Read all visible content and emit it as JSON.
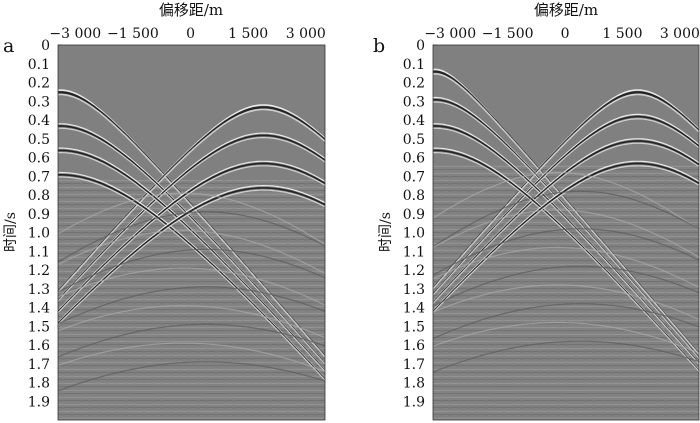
{
  "chart_data": [
    {
      "type": "heatmap",
      "panel": "a",
      "xlabel": "偏移距/m",
      "ylabel": "时间/s",
      "x_ticks": [
        "−3 000",
        "−1 500",
        "0",
        "1 500",
        "3 000"
      ],
      "x_tick_values": [
        -3000,
        -1500,
        0,
        1500,
        3000
      ],
      "xlim": [
        -3450,
        3500
      ],
      "y_ticks": [
        "0",
        "0.1",
        "0.2",
        "0.3",
        "0.4",
        "0.5",
        "0.6",
        "0.7",
        "0.8",
        "0.9",
        "1.0",
        "1.1",
        "1.2",
        "1.3",
        "1.4",
        "1.5",
        "1.6",
        "1.7",
        "1.8",
        "1.9"
      ],
      "y_tick_values": [
        0,
        0.1,
        0.2,
        0.3,
        0.4,
        0.5,
        0.6,
        0.7,
        0.8,
        0.9,
        1.0,
        1.1,
        1.2,
        1.3,
        1.4,
        1.5,
        1.6,
        1.7,
        1.8,
        1.9
      ],
      "ylim": [
        0,
        2.0
      ],
      "y_inverted": true,
      "colormap": "grayscale seismic",
      "events": [
        {
          "kind": "diffraction",
          "apex_offset": -3400,
          "apex_time": 0.24
        },
        {
          "kind": "diffraction",
          "apex_offset": 1900,
          "apex_time": 0.32
        },
        {
          "kind": "diffraction",
          "apex_offset": -3400,
          "apex_time": 0.42
        },
        {
          "kind": "diffraction",
          "apex_offset": 1900,
          "apex_time": 0.47
        },
        {
          "kind": "diffraction",
          "apex_offset": -3400,
          "apex_time": 0.55
        },
        {
          "kind": "diffraction",
          "apex_offset": 1900,
          "apex_time": 0.62
        },
        {
          "kind": "diffraction",
          "apex_offset": -3400,
          "apex_time": 0.68
        },
        {
          "kind": "diffraction",
          "apex_offset": 1900,
          "apex_time": 0.75
        }
      ]
    },
    {
      "type": "heatmap",
      "panel": "b",
      "xlabel": "偏移距/m",
      "ylabel": "时间/s",
      "x_ticks": [
        "−3 000",
        "−1 500",
        "0",
        "1 500",
        "3 000"
      ],
      "x_tick_values": [
        -3000,
        -1500,
        0,
        1500,
        3000
      ],
      "xlim": [
        -3450,
        3500
      ],
      "y_ticks": [
        "0",
        "0.1",
        "0.2",
        "0.3",
        "0.4",
        "0.5",
        "0.6",
        "0.7",
        "0.8",
        "0.9",
        "1.0",
        "1.1",
        "1.2",
        "1.3",
        "1.4",
        "1.5",
        "1.6",
        "1.7",
        "1.8",
        "1.9"
      ],
      "y_tick_values": [
        0,
        0.1,
        0.2,
        0.3,
        0.4,
        0.5,
        0.6,
        0.7,
        0.8,
        0.9,
        1.0,
        1.1,
        1.2,
        1.3,
        1.4,
        1.5,
        1.6,
        1.7,
        1.8,
        1.9
      ],
      "ylim": [
        0,
        2.0
      ],
      "y_inverted": true,
      "colormap": "grayscale seismic",
      "events": [
        {
          "kind": "diffraction",
          "apex_offset": -3400,
          "apex_time": 0.13
        },
        {
          "kind": "diffraction",
          "apex_offset": 1900,
          "apex_time": 0.24
        },
        {
          "kind": "diffraction",
          "apex_offset": -3400,
          "apex_time": 0.28
        },
        {
          "kind": "diffraction",
          "apex_offset": 1900,
          "apex_time": 0.37
        },
        {
          "kind": "diffraction",
          "apex_offset": -3400,
          "apex_time": 0.42
        },
        {
          "kind": "diffraction",
          "apex_offset": 1900,
          "apex_time": 0.5
        },
        {
          "kind": "diffraction",
          "apex_offset": -3400,
          "apex_time": 0.55
        },
        {
          "kind": "diffraction",
          "apex_offset": 1900,
          "apex_time": 0.62
        }
      ]
    }
  ]
}
